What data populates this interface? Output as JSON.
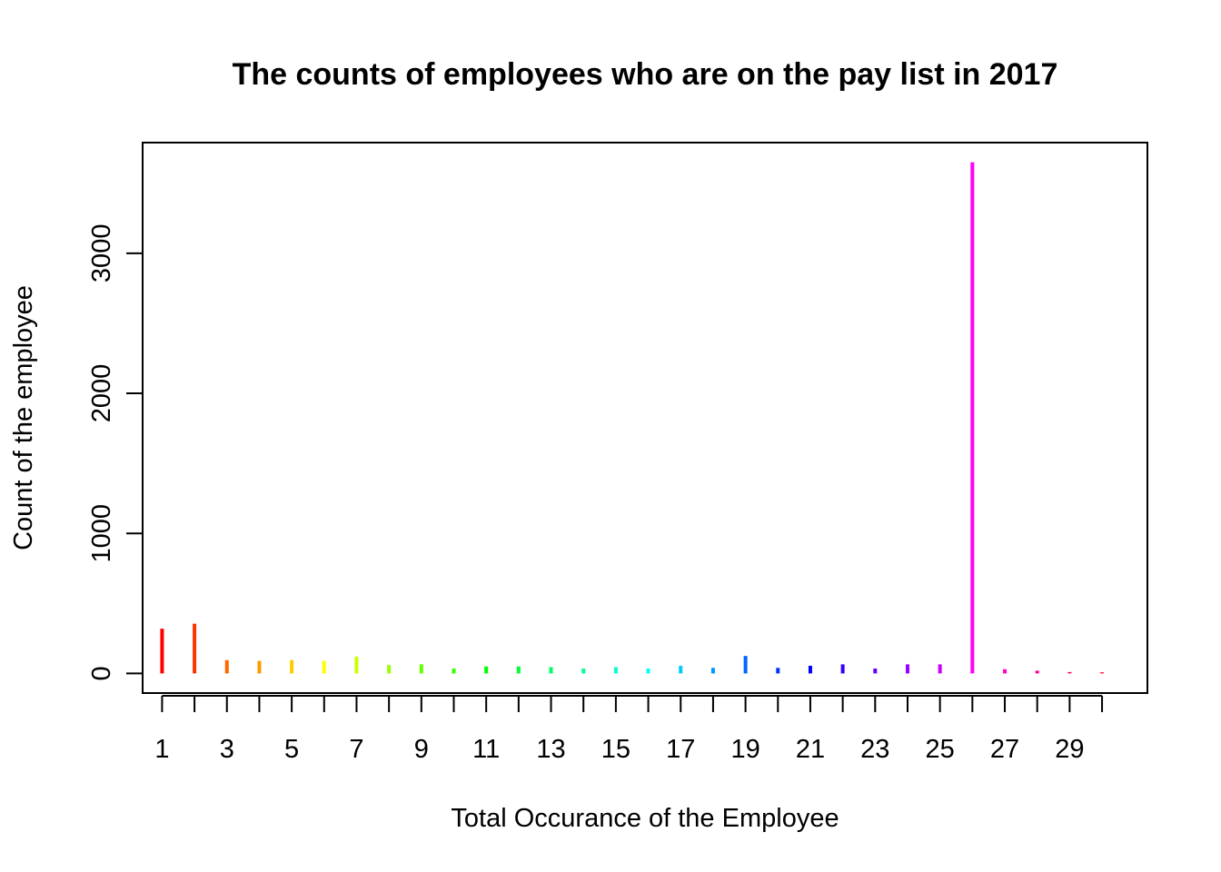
{
  "chart_data": {
    "type": "bar",
    "title": "The counts of employees who are on the pay list in 2017",
    "xlabel": "Total Occurance of the Employee",
    "ylabel": "Count of the employee",
    "x": [
      1,
      2,
      3,
      4,
      5,
      6,
      7,
      8,
      9,
      10,
      11,
      12,
      13,
      14,
      15,
      16,
      17,
      18,
      19,
      20,
      21,
      22,
      23,
      24,
      25,
      26,
      27,
      28,
      29,
      30
    ],
    "values": [
      320,
      355,
      95,
      90,
      95,
      90,
      120,
      60,
      65,
      35,
      50,
      50,
      45,
      35,
      45,
      35,
      55,
      40,
      125,
      40,
      55,
      65,
      35,
      65,
      65,
      3650,
      30,
      20,
      10,
      8
    ],
    "x_tick_labels": [
      "1",
      "3",
      "5",
      "7",
      "9",
      "11",
      "13",
      "15",
      "17",
      "19",
      "21",
      "23",
      "25",
      "27",
      "29"
    ],
    "y_ticks": [
      0,
      1000,
      2000,
      3000
    ],
    "xlim": [
      0.4,
      31.4
    ],
    "ylim": [
      -140,
      3790
    ],
    "grid": false,
    "legend": "none",
    "colors": [
      "#FF0000",
      "#FF3300",
      "#FF6600",
      "#FF9900",
      "#FFCC00",
      "#FFFF00",
      "#CCFF00",
      "#99FF00",
      "#66FF00",
      "#33FF00",
      "#00FF00",
      "#00FF33",
      "#00FF66",
      "#00FF99",
      "#00FFCC",
      "#00FFFF",
      "#00CCFF",
      "#0099FF",
      "#0066FF",
      "#0033FF",
      "#0000FF",
      "#3300FF",
      "#6600FF",
      "#9900FF",
      "#CC00FF",
      "#FF00FF",
      "#FF00CC",
      "#FF0099",
      "#FF0066",
      "#FF0033"
    ]
  }
}
